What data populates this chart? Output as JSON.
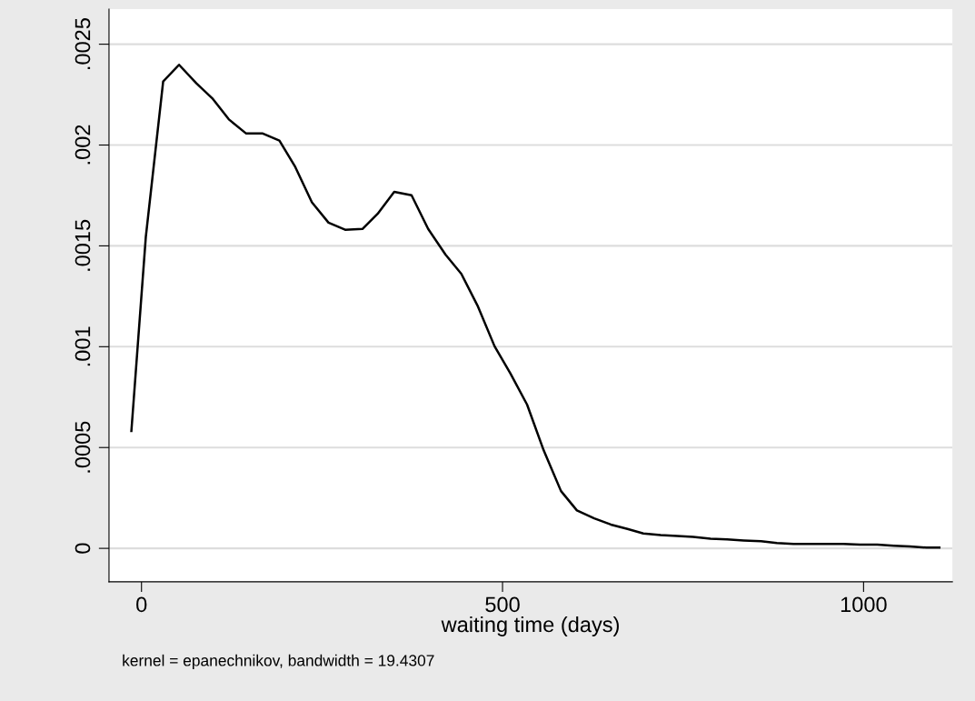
{
  "chart_data": {
    "type": "line",
    "xlabel": "waiting time (days)",
    "annotations": [
      "kernel = epanechnikov, bandwidth = 19.4307"
    ],
    "xlim": [
      -45,
      1123
    ],
    "ylim": [
      -0.000166,
      0.002674
    ],
    "xticks": [
      0,
      500,
      1000
    ],
    "yticks": [
      0,
      {
        "value": 0.0005,
        "label": ".0005"
      },
      {
        "value": 0.001,
        "label": ".001"
      },
      {
        "value": 0.0015,
        "label": ".0015"
      },
      {
        "value": 0.002,
        "label": ".002"
      },
      {
        "value": 0.0025,
        "label": ".0025"
      }
    ],
    "grid": "y",
    "marker": "none",
    "line_style": "solid",
    "series": [
      {
        "color": "#000000",
        "x": [
          -14,
          6,
          30,
          52,
          76,
          98,
          121,
          145,
          168,
          191,
          213,
          236,
          259,
          282,
          306,
          327,
          350,
          374,
          397,
          421,
          443,
          466,
          489,
          511,
          534,
          557,
          581,
          603,
          627,
          650,
          673,
          695,
          719,
          742,
          764,
          788,
          811,
          834,
          858,
          880,
          903,
          926,
          950,
          972,
          995,
          1019,
          1042,
          1064,
          1087,
          1105
        ],
        "values": [
          0.000582,
          0.001545,
          0.002315,
          0.002398,
          0.002306,
          0.002232,
          0.002127,
          0.002057,
          0.002057,
          0.002022,
          0.001891,
          0.001716,
          0.001615,
          0.00158,
          0.001584,
          0.001659,
          0.001768,
          0.001751,
          0.001584,
          0.001457,
          0.001361,
          0.001199,
          0.001002,
          0.000867,
          0.000713,
          0.000486,
          0.000284,
          0.000188,
          0.000149,
          0.000118,
          9.6e-05,
          7.4e-05,
          6.6e-05,
          6.1e-05,
          5.7e-05,
          4.8e-05,
          4.4e-05,
          3.9e-05,
          3.5e-05,
          2.6e-05,
          2.2e-05,
          2.2e-05,
          2.2e-05,
          2.2e-05,
          1.8e-05,
          1.8e-05,
          1.3e-05,
          9e-06,
          4e-06,
          4e-06
        ]
      }
    ]
  }
}
